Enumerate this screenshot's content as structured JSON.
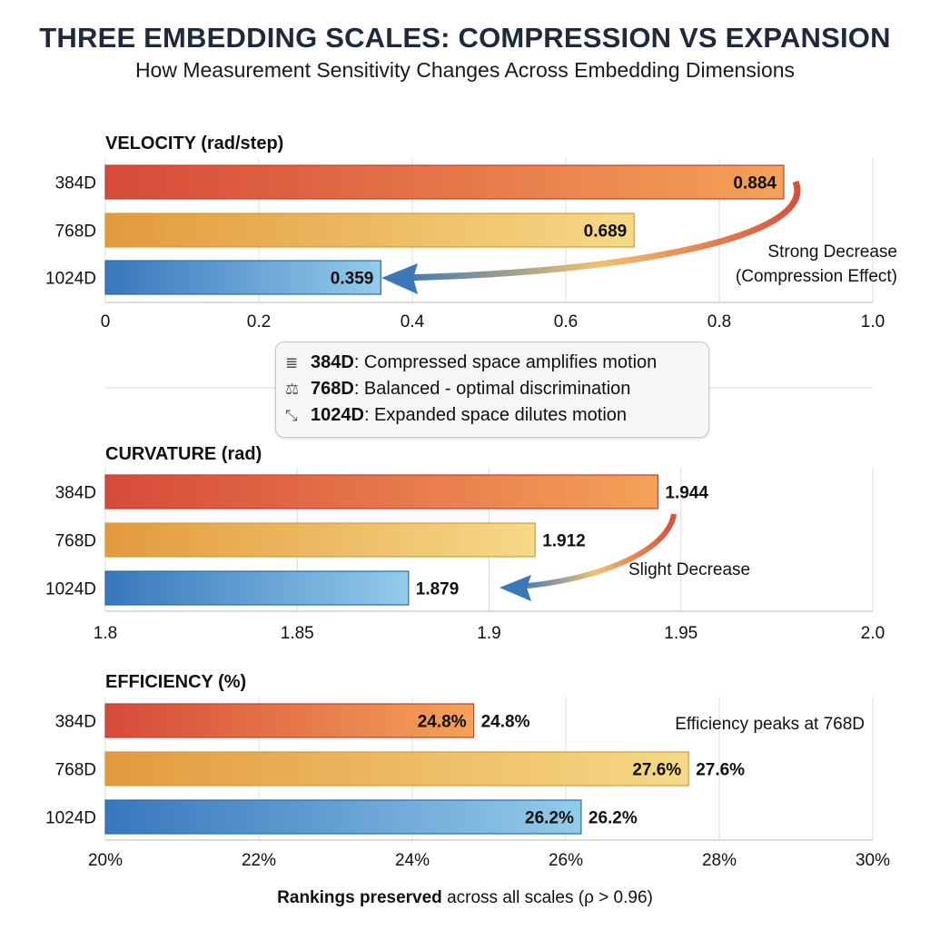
{
  "title": "THREE EMBEDDING SCALES: COMPRESSION VS EXPANSION",
  "subtitle": "How Measurement Sensitivity Changes Across Embedding Dimensions",
  "legend": [
    {
      "icon": "stack-coil-icon",
      "glyph": "≣",
      "bold": "384D",
      "text": ": Compressed space amplifies motion"
    },
    {
      "icon": "balance-scale-icon",
      "glyph": "⚖",
      "bold": "768D",
      "text": ": Balanced - optimal discrimination"
    },
    {
      "icon": "expand-arrows-icon",
      "glyph": "⤡",
      "bold": "1024D",
      "text": ": Expanded space dilutes motion"
    }
  ],
  "footer": {
    "bold": "Rankings preserved",
    "text": " across all scales (ρ > 0.96)"
  },
  "colors": {
    "384D": [
      "#d64a3a",
      "#f4a259"
    ],
    "768D": [
      "#e39a3e",
      "#f6d987"
    ],
    "1024D": [
      "#3877bd",
      "#93cbea"
    ]
  },
  "chart_data": [
    {
      "type": "bar",
      "title": "VELOCITY (rad/step)",
      "categories": [
        "384D",
        "768D",
        "1024D"
      ],
      "values": [
        0.884,
        0.689,
        0.359
      ],
      "value_labels": [
        "0.884",
        "0.689",
        "0.359"
      ],
      "label_position": "inside",
      "xlim": [
        0,
        1.0
      ],
      "ticks": [
        0,
        0.2,
        0.4,
        0.6,
        0.8,
        1.0
      ],
      "tick_labels": [
        "0",
        "0.2",
        "0.4",
        "0.6",
        "0.8",
        "1.0"
      ],
      "annotation": [
        "Strong Decrease",
        "(Compression Effect)"
      ],
      "grid": true
    },
    {
      "type": "bar",
      "title": "CURVATURE (rad)",
      "categories": [
        "384D",
        "768D",
        "1024D"
      ],
      "values": [
        1.944,
        1.912,
        1.879
      ],
      "value_labels": [
        "1.944",
        "1.912",
        "1.879"
      ],
      "label_position": "outside",
      "xlim": [
        1.8,
        2.0
      ],
      "ticks": [
        1.8,
        1.85,
        1.9,
        1.95,
        2.0
      ],
      "tick_labels": [
        "1.8",
        "1.85",
        "1.9",
        "1.95",
        "2.0"
      ],
      "annotation": [
        "Slight Decrease"
      ],
      "grid": true
    },
    {
      "type": "bar",
      "title": "EFFICIENCY (%)",
      "categories": [
        "384D",
        "768D",
        "1024D"
      ],
      "values": [
        24.8,
        27.6,
        26.2
      ],
      "value_labels": [
        "24.8%",
        "27.6%",
        "26.2%"
      ],
      "label_position": "both",
      "xlim": [
        20,
        30
      ],
      "ticks": [
        20,
        22,
        24,
        26,
        28,
        30
      ],
      "tick_labels": [
        "20%",
        "22%",
        "24%",
        "26%",
        "28%",
        "30%"
      ],
      "annotation": [
        "Efficiency peaks at 768D"
      ],
      "grid": true
    }
  ]
}
